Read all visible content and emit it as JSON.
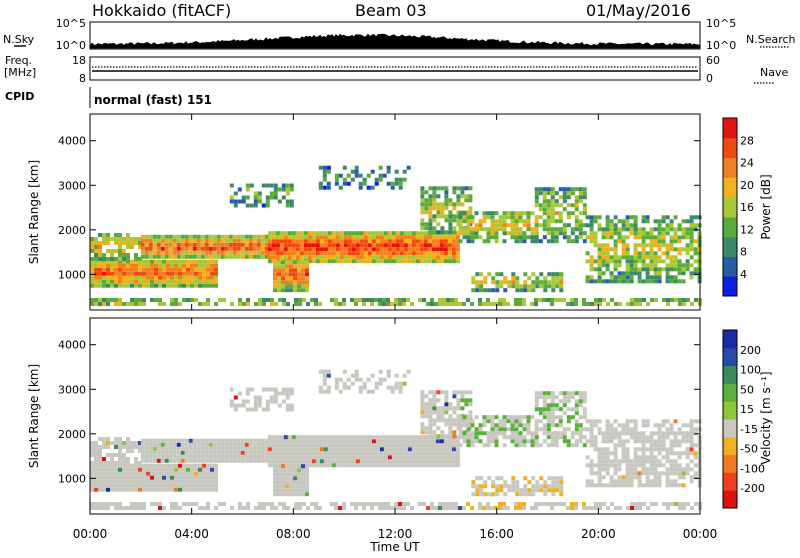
{
  "header": {
    "station": "Hokkaido (fitACF)",
    "beam": "Beam 03",
    "date": "01/May/2016"
  },
  "top_panel": {
    "left_label_1": "N.Sky",
    "left_label_2": "Freq.",
    "left_label_3": "[MHz]",
    "left_label_4": "CPID",
    "right_label_1": "N.Search",
    "right_label_2": "Nave",
    "sky_tick_top": "10^5",
    "sky_tick_bottom": "10^0",
    "search_tick_top": "10^5",
    "search_tick_bottom": "10^0",
    "freq_tick_top": "18",
    "freq_tick_bottom": "8",
    "nave_tick_top": "60",
    "nave_tick_bottom": "0",
    "cpid_text": "normal (fast) 151"
  },
  "chart_data": [
    {
      "type": "heatmap",
      "name": "power",
      "ylabel": "Slant Range [km]",
      "ylim": [
        200,
        4600
      ],
      "yticks": [
        "1000",
        "2000",
        "3000",
        "4000"
      ],
      "colorbar_label": "Power [dB]",
      "colorbar_ticks": [
        "4",
        "8",
        "12",
        "16",
        "20",
        "24",
        "28"
      ],
      "colors": [
        "#0d1ee8",
        "#2a5ba8",
        "#3a8a6a",
        "#5aab3a",
        "#a8c83a",
        "#f0b020",
        "#f08020",
        "#f04a10",
        "#e81010"
      ]
    },
    {
      "type": "heatmap",
      "name": "velocity",
      "ylabel": "Slant Range [km]",
      "ylim": [
        200,
        4600
      ],
      "yticks": [
        "1000",
        "2000",
        "3000",
        "4000"
      ],
      "colorbar_label": "Velocity [m s⁻¹]",
      "colorbar_ticks": [
        "200",
        "100",
        "50",
        "15",
        "-15",
        "-50",
        "-100",
        "-200"
      ],
      "colors": [
        "#1a2aaa",
        "#2a4aa8",
        "#3a8a5a",
        "#5ab03a",
        "#8ac83a",
        "#c8c8c0",
        "#f0b020",
        "#f07a20",
        "#f04020",
        "#e01010"
      ]
    }
  ],
  "xaxis": {
    "ticks": [
      "00:00",
      "04:00",
      "08:00",
      "12:00",
      "16:00",
      "20:00",
      "00:00"
    ],
    "label": "Time UT"
  }
}
